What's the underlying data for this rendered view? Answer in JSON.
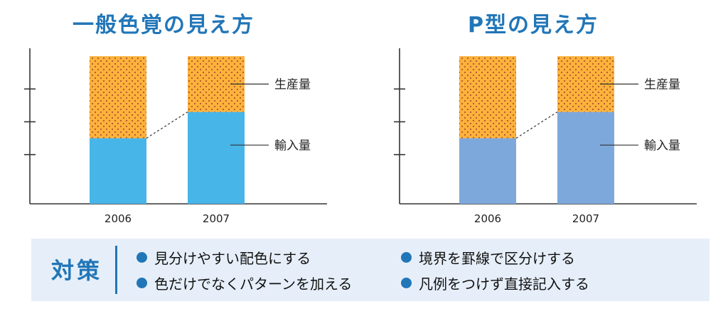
{
  "colors": {
    "accent": "#2176b8",
    "production_fill": "#fbb33c",
    "production_dots": "#b5532e",
    "import_normal": "#47b5e8",
    "import_ptype": "#7da8dc",
    "axis": "#333333",
    "panel_bg": "#e6eff9"
  },
  "chart_data": [
    {
      "type": "bar",
      "stacked": true,
      "title": "一般色覚の見え方",
      "categories": [
        "2006",
        "2007"
      ],
      "series": [
        {
          "name": "輸入量",
          "values": [
            40,
            56
          ],
          "color_key": "import_normal",
          "pattern": "solid"
        },
        {
          "name": "生産量",
          "values": [
            50,
            34
          ],
          "color_key": "production_fill",
          "pattern": "dots"
        }
      ],
      "ylim": [
        0,
        100
      ],
      "yticks": [
        30,
        50,
        70
      ],
      "show_ytick_labels": false,
      "connector_line": true,
      "legend": [
        "生産量",
        "輸入量"
      ],
      "legend_placement": "right-callouts"
    },
    {
      "type": "bar",
      "stacked": true,
      "title": "P型の見え方",
      "categories": [
        "2006",
        "2007"
      ],
      "series": [
        {
          "name": "輸入量",
          "values": [
            40,
            56
          ],
          "color_key": "import_ptype",
          "pattern": "solid"
        },
        {
          "name": "生産量",
          "values": [
            50,
            34
          ],
          "color_key": "production_fill",
          "pattern": "dots"
        }
      ],
      "ylim": [
        0,
        100
      ],
      "yticks": [
        30,
        50,
        70
      ],
      "show_ytick_labels": false,
      "connector_line": true,
      "legend": [
        "生産量",
        "輸入量"
      ],
      "legend_placement": "right-callouts"
    }
  ],
  "measures": {
    "label": "対策",
    "tips": [
      "見分けやすい配色にする",
      "色だけでなくパターンを加える",
      "境界を罫線で区分けする",
      "凡例をつけず直接記入する"
    ]
  }
}
